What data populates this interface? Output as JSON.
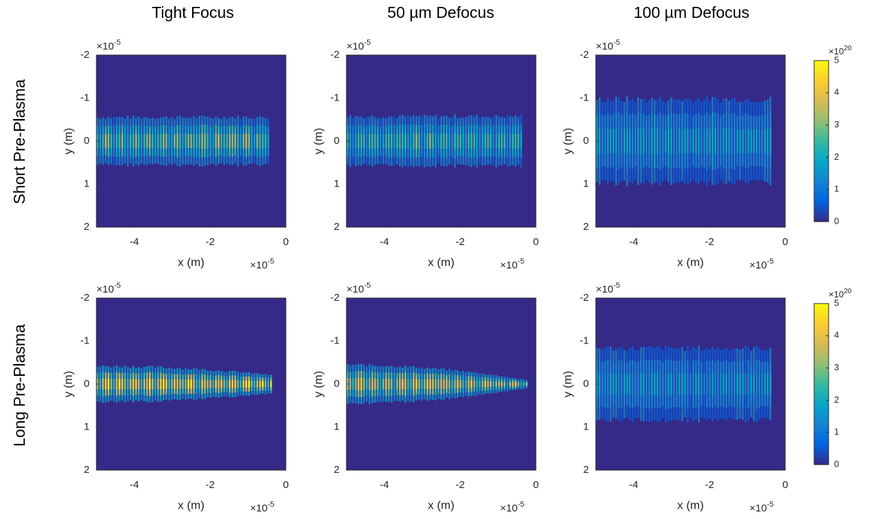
{
  "column_titles": [
    "Tight Focus",
    "50 µm Defocus",
    "100 µm Defocus"
  ],
  "row_labels": [
    "Short Pre-Plasma",
    "Long Pre-Plasma"
  ],
  "chart_data": [
    {
      "type": "heatmap",
      "xlabel": "x (m)",
      "ylabel": "y (m)",
      "xlim": [
        -5,
        0
      ],
      "xticks": [
        -4,
        -2,
        0
      ],
      "ylim": [
        -2,
        2
      ],
      "yticks": [
        -2,
        -1,
        0,
        1,
        2
      ],
      "y_reversed": true,
      "x_multiplier": {
        "base": "×10",
        "exponent": "-5"
      },
      "y_multiplier": {
        "base": "×10",
        "exponent": "-5"
      }
    },
    {
      "type": "heatmap",
      "xlabel": "x (m)",
      "ylabel": "y (m)",
      "xlim": [
        -5,
        0
      ],
      "xticks": [
        -4,
        -2,
        0
      ],
      "ylim": [
        -2,
        2
      ],
      "yticks": [
        -2,
        -1,
        0,
        1,
        2
      ],
      "y_reversed": true,
      "x_multiplier": {
        "base": "×10",
        "exponent": "-5"
      },
      "y_multiplier": {
        "base": "×10",
        "exponent": "-5"
      }
    },
    {
      "type": "heatmap",
      "xlabel": "x (m)",
      "ylabel": "y (m)",
      "xlim": [
        -5,
        0
      ],
      "xticks": [
        -4,
        -2,
        0
      ],
      "ylim": [
        -2,
        2
      ],
      "yticks": [
        -2,
        -1,
        0,
        1,
        2
      ],
      "y_reversed": true,
      "x_multiplier": {
        "base": "×10",
        "exponent": "-5"
      },
      "y_multiplier": {
        "base": "×10",
        "exponent": "-5"
      },
      "colorbar": {
        "clim": [
          0,
          5
        ],
        "cticks": [
          0,
          1,
          2,
          3,
          4,
          5
        ],
        "multiplier": {
          "base": "×10",
          "exponent": "20"
        },
        "colormap": [
          "#352a87",
          "#0363e1",
          "#1485d4",
          "#06a7c6",
          "#38b99e",
          "#92bf73",
          "#d9ba56",
          "#fcce2e",
          "#f9fb0e"
        ]
      }
    },
    {
      "type": "heatmap",
      "xlabel": "x (m)",
      "ylabel": "y (m)",
      "xlim": [
        -5,
        0
      ],
      "xticks": [
        -4,
        -2,
        0
      ],
      "ylim": [
        -2,
        2
      ],
      "yticks": [
        -2,
        -1,
        0,
        1,
        2
      ],
      "y_reversed": true,
      "x_multiplier": {
        "base": "×10",
        "exponent": "-5"
      },
      "y_multiplier": {
        "base": "×10",
        "exponent": "-5"
      }
    },
    {
      "type": "heatmap",
      "xlabel": "x (m)",
      "ylabel": "y (m)",
      "xlim": [
        -5,
        0
      ],
      "xticks": [
        -4,
        -2,
        0
      ],
      "ylim": [
        -2,
        2
      ],
      "yticks": [
        -2,
        -1,
        0,
        1,
        2
      ],
      "y_reversed": true,
      "x_multiplier": {
        "base": "×10",
        "exponent": "-5"
      },
      "y_multiplier": {
        "base": "×10",
        "exponent": "-5"
      }
    },
    {
      "type": "heatmap",
      "xlabel": "x (m)",
      "ylabel": "y (m)",
      "xlim": [
        -5,
        0
      ],
      "xticks": [
        -4,
        -2,
        0
      ],
      "ylim": [
        -2,
        2
      ],
      "yticks": [
        -2,
        -1,
        0,
        1,
        2
      ],
      "y_reversed": true,
      "x_multiplier": {
        "base": "×10",
        "exponent": "-5"
      },
      "y_multiplier": {
        "base": "×10",
        "exponent": "-5"
      },
      "colorbar": {
        "clim": [
          0,
          5
        ],
        "cticks": [
          0,
          1,
          2,
          3,
          4,
          5
        ],
        "multiplier": {
          "base": "×10",
          "exponent": "20"
        },
        "colormap": [
          "#352a87",
          "#0363e1",
          "#1485d4",
          "#06a7c6",
          "#38b99e",
          "#92bf73",
          "#d9ba56",
          "#fcce2e",
          "#f9fb0e"
        ]
      }
    }
  ]
}
